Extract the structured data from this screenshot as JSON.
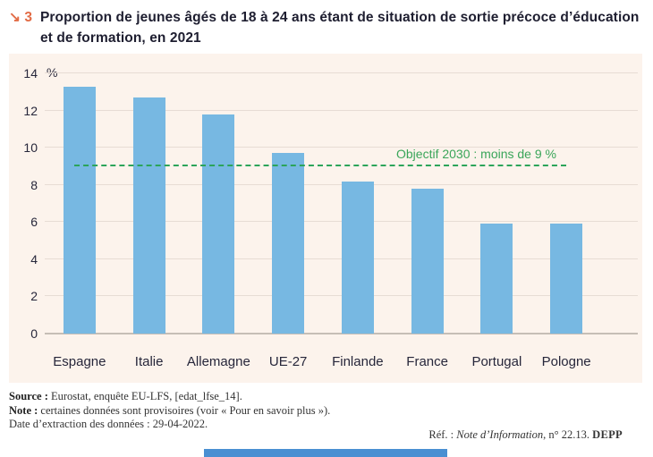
{
  "figure": {
    "marker_arrow": "↘",
    "number": "3",
    "title_line1": "Proportion de jeunes âgés de 18 à 24 ans étant de situation de sortie précoce d’éducation",
    "title_line2": "et de formation, en 2021"
  },
  "chart_data": {
    "type": "bar",
    "categories": [
      "Espagne",
      "Italie",
      "Allemagne",
      "UE-27",
      "Finlande",
      "France",
      "Portugal",
      "Pologne"
    ],
    "values": [
      13.3,
      12.7,
      11.8,
      9.7,
      8.2,
      7.8,
      5.9,
      5.9
    ],
    "title": "Proportion de jeunes âgés de 18 à 24 ans étant de situation de sortie précoce d’éducation et de formation, en 2021",
    "xlabel": "",
    "ylabel_unit": "%",
    "ylim": [
      0,
      14
    ],
    "y_ticks": [
      0,
      2,
      4,
      6,
      8,
      10,
      12,
      14
    ],
    "grid": "horizontal",
    "objective_line": {
      "value": 9,
      "label": "Objectif 2030 : moins de 9 %"
    },
    "colors": {
      "bar": "#77b8e2",
      "objective": "#2ca45a",
      "panel_background": "#fcf3ec"
    }
  },
  "footer": {
    "source_label": "Source :",
    "source_text": " Eurostat, enquête EU-LFS, [edat_lfse_14].",
    "note_label": "Note :",
    "note_text": " certaines données sont provisoires (voir « Pour en savoir plus »).",
    "date_text": "Date d’extraction des données : 29-04-2022.",
    "ref_prefix": "Réf. : ",
    "ref_italic": "Note d’Information",
    "ref_suffix": ", n° 22.13. ",
    "ref_org": "DEPP"
  }
}
